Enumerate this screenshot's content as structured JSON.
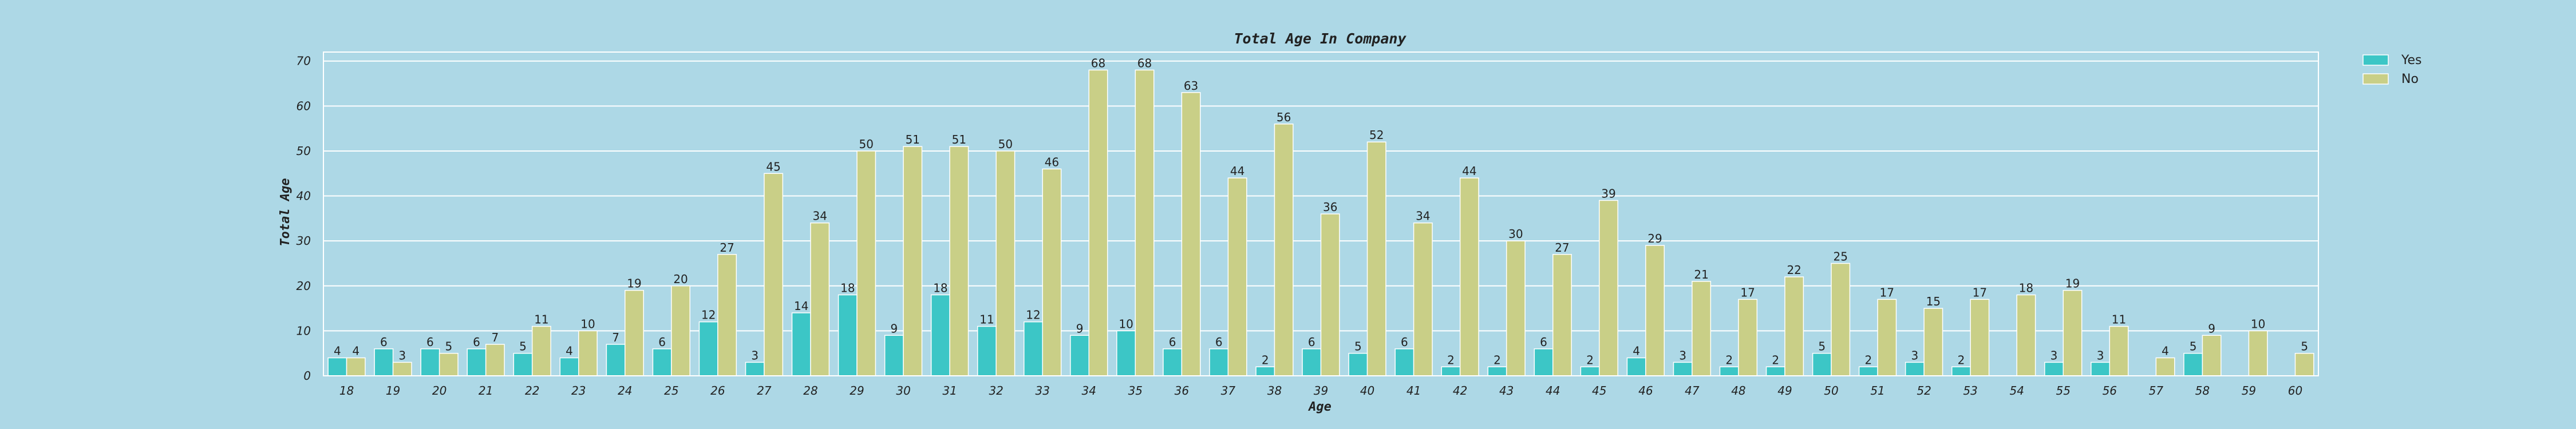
{
  "chart_data": {
    "type": "bar",
    "title": "Total Age In Company",
    "xlabel": "Age",
    "ylabel": "Total Age",
    "ylim": [
      0,
      72
    ],
    "yticks": [
      0,
      10,
      20,
      30,
      40,
      50,
      60,
      70
    ],
    "grid": "horizontal",
    "legend_position": "top-right",
    "categories": [
      "18",
      "19",
      "20",
      "21",
      "22",
      "23",
      "24",
      "25",
      "26",
      "27",
      "28",
      "29",
      "30",
      "31",
      "32",
      "33",
      "34",
      "35",
      "36",
      "37",
      "38",
      "39",
      "40",
      "41",
      "42",
      "43",
      "44",
      "45",
      "46",
      "47",
      "48",
      "49",
      "50",
      "51",
      "52",
      "53",
      "54",
      "55",
      "56",
      "57",
      "58",
      "59",
      "60"
    ],
    "series": [
      {
        "name": "Yes",
        "color": "#3cc6c6",
        "values": [
          4,
          6,
          6,
          6,
          5,
          4,
          7,
          6,
          12,
          3,
          14,
          18,
          9,
          18,
          11,
          12,
          9,
          10,
          6,
          6,
          2,
          6,
          5,
          6,
          2,
          2,
          6,
          2,
          4,
          3,
          2,
          2,
          5,
          2,
          3,
          2,
          null,
          3,
          3,
          null,
          5,
          null,
          null
        ]
      },
      {
        "name": "No",
        "color": "#c9cf87",
        "values": [
          4,
          3,
          5,
          7,
          11,
          10,
          19,
          20,
          27,
          45,
          34,
          50,
          51,
          51,
          50,
          46,
          68,
          68,
          63,
          44,
          56,
          36,
          52,
          34,
          44,
          30,
          27,
          39,
          29,
          21,
          17,
          22,
          25,
          17,
          15,
          17,
          18,
          19,
          11,
          4,
          9,
          10,
          5
        ]
      }
    ]
  }
}
